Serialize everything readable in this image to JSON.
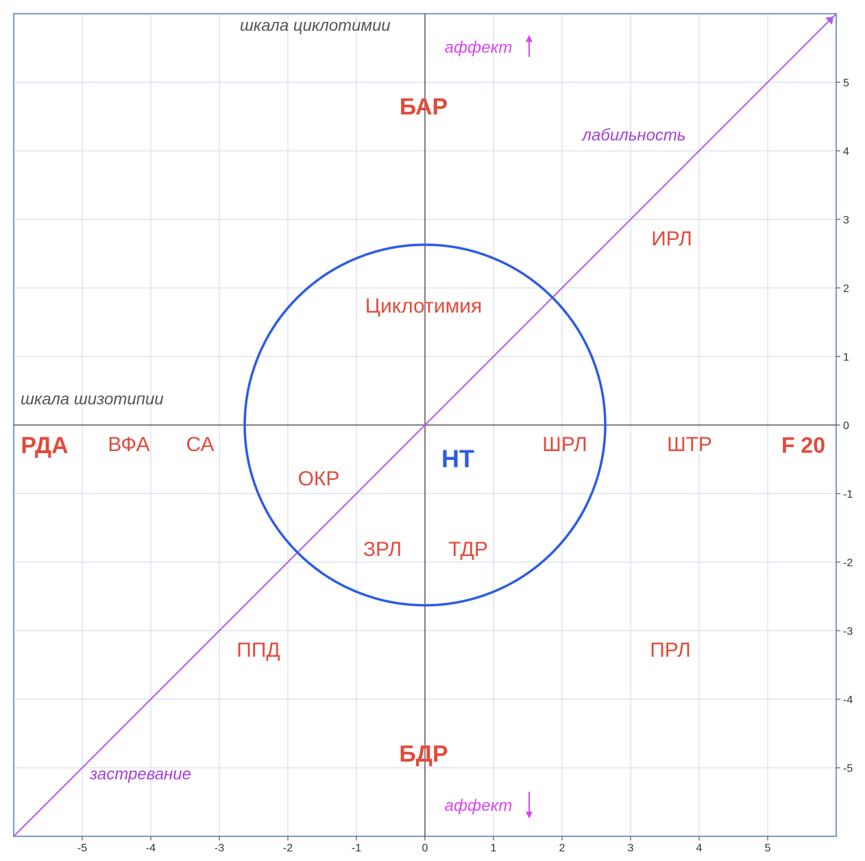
{
  "chart_data": {
    "type": "scatter",
    "title": "",
    "xlabel": "",
    "ylabel": "",
    "xlim": [
      -6,
      6
    ],
    "ylim": [
      -6,
      6
    ],
    "grid": true,
    "x_ticks": [
      "-5",
      "-4",
      "-3",
      "-2",
      "-1",
      "0",
      "1",
      "2",
      "3",
      "4",
      "5"
    ],
    "y_ticks": [
      "5",
      "4",
      "3",
      "2",
      "1",
      "0",
      "-1",
      "-2",
      "-3",
      "-4",
      "-5"
    ],
    "circle": {
      "center": [
        0,
        0
      ],
      "radius": 2.63,
      "color": "#2b5ce6"
    },
    "diagonal": {
      "from": [
        -6,
        -6
      ],
      "to": [
        6,
        6
      ],
      "color": "#b258e6"
    },
    "axis_titles": [
      {
        "text": "шкала циклотимии",
        "x": -2.7,
        "y": 5.75,
        "color": "#555555",
        "size": 24,
        "weight": "normal",
        "style": "italic",
        "anchor": "start"
      },
      {
        "text": "шкала шизотипии",
        "x": -5.9,
        "y": 0.3,
        "color": "#555555",
        "size": 24,
        "weight": "normal",
        "style": "italic",
        "anchor": "start"
      },
      {
        "text": "лабильность",
        "x": 3.05,
        "y": 4.15,
        "color": "#a63fd9",
        "size": 24,
        "weight": "normal",
        "style": "italic",
        "anchor": "middle"
      },
      {
        "text": "застревание",
        "x": -4.15,
        "y": -5.17,
        "color": "#a63fd9",
        "size": 24,
        "weight": "normal",
        "style": "italic",
        "anchor": "middle"
      },
      {
        "text": "аффект",
        "x": 0.78,
        "y": 5.43,
        "color": "#d946ef",
        "size": 24,
        "weight": "normal",
        "style": "italic",
        "anchor": "middle"
      },
      {
        "text": "аффект",
        "x": 0.78,
        "y": -5.63,
        "color": "#d946ef",
        "size": 24,
        "weight": "normal",
        "style": "italic",
        "anchor": "middle"
      }
    ],
    "affect_arrows": [
      {
        "x": 1.52,
        "y1": 5.37,
        "y2": 5.67,
        "dir": "up",
        "color": "#d946ef"
      },
      {
        "x": 1.52,
        "y1": -5.35,
        "y2": -5.72,
        "dir": "down",
        "color": "#d946ef"
      }
    ],
    "annotations": [
      {
        "text": "БАР",
        "x": -0.02,
        "y": 4.62,
        "color": "#e24a3b",
        "size": 34,
        "weight": "bold"
      },
      {
        "text": "БДР",
        "x": -0.02,
        "y": -4.82,
        "color": "#e24a3b",
        "size": 34,
        "weight": "bold"
      },
      {
        "text": "РДА",
        "x": -5.55,
        "y": -0.32,
        "color": "#e24a3b",
        "size": 34,
        "weight": "bold"
      },
      {
        "text": "F 20",
        "x": 5.52,
        "y": -0.32,
        "color": "#e24a3b",
        "size": 32,
        "weight": "bold"
      },
      {
        "text": "НТ",
        "x": 0.48,
        "y": -0.52,
        "color": "#2b5ce6",
        "size": 36,
        "weight": "bold"
      },
      {
        "text": "ВФА",
        "x": -4.32,
        "y": -0.3,
        "color": "#e24a3b",
        "size": 30,
        "weight": "normal"
      },
      {
        "text": "СА",
        "x": -3.28,
        "y": -0.3,
        "color": "#e24a3b",
        "size": 30,
        "weight": "normal"
      },
      {
        "text": "ИРЛ",
        "x": 3.6,
        "y": 2.7,
        "color": "#e24a3b",
        "size": 30,
        "weight": "normal"
      },
      {
        "text": "Циклотимия",
        "x": -0.02,
        "y": 1.72,
        "color": "#e24a3b",
        "size": 30,
        "weight": "normal"
      },
      {
        "text": "ШРЛ",
        "x": 2.04,
        "y": -0.3,
        "color": "#e24a3b",
        "size": 30,
        "weight": "normal"
      },
      {
        "text": "ШТР",
        "x": 3.86,
        "y": -0.3,
        "color": "#e24a3b",
        "size": 30,
        "weight": "normal"
      },
      {
        "text": "ОКР",
        "x": -1.55,
        "y": -0.8,
        "color": "#e24a3b",
        "size": 30,
        "weight": "normal"
      },
      {
        "text": "ЗРЛ",
        "x": -0.62,
        "y": -1.83,
        "color": "#e24a3b",
        "size": 30,
        "weight": "normal"
      },
      {
        "text": "ТДР",
        "x": 0.63,
        "y": -1.83,
        "color": "#e24a3b",
        "size": 30,
        "weight": "normal"
      },
      {
        "text": "ППД",
        "x": -2.43,
        "y": -3.3,
        "color": "#e24a3b",
        "size": 30,
        "weight": "normal"
      },
      {
        "text": "ПРЛ",
        "x": 3.58,
        "y": -3.3,
        "color": "#e24a3b",
        "size": 30,
        "weight": "normal"
      }
    ]
  }
}
